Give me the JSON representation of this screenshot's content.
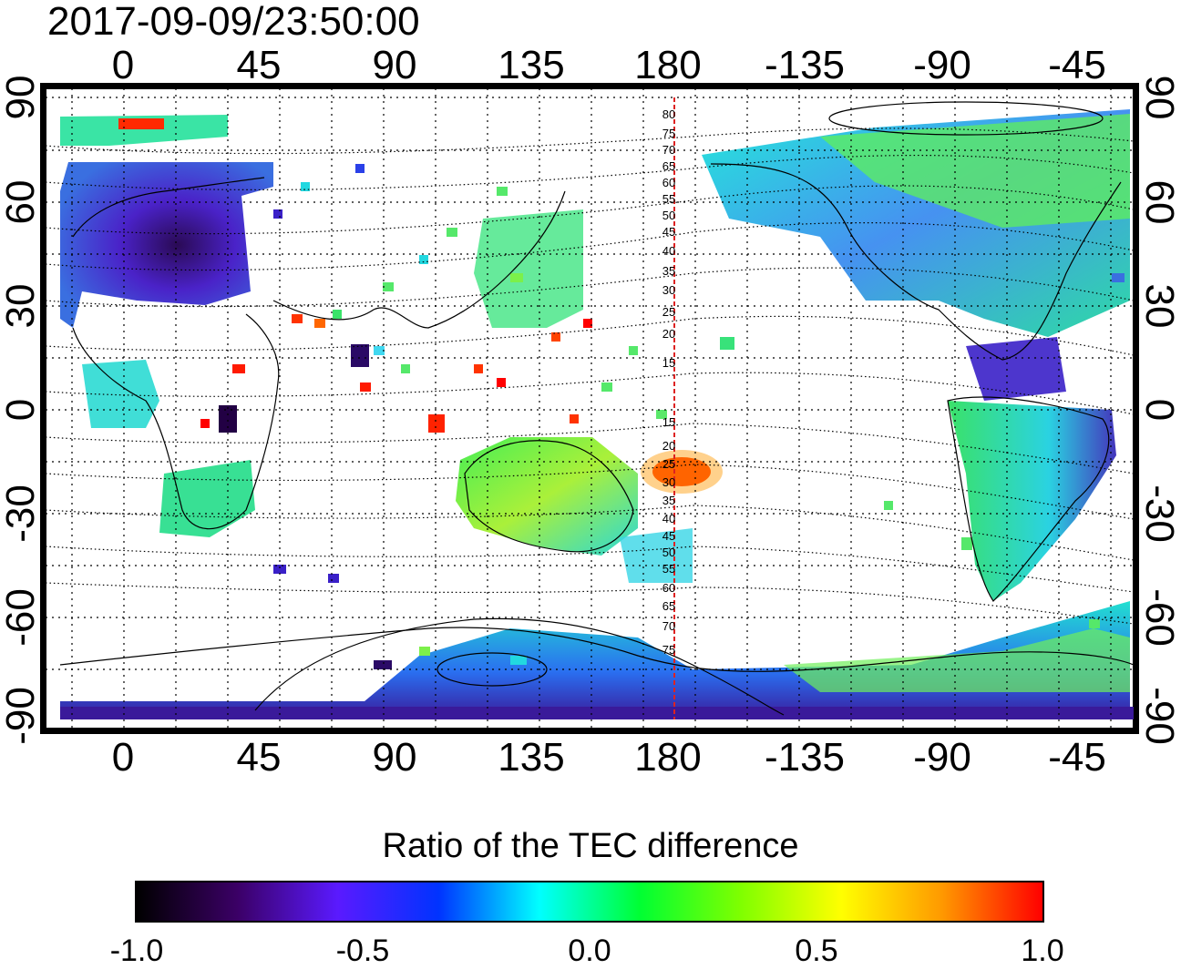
{
  "title": "2017-09-09/23:50:00",
  "map": {
    "top_lon_labels": [
      "0",
      "45",
      "90",
      "135",
      "180",
      "-135",
      "-90",
      "-45"
    ],
    "bottom_lon_labels": [
      "0",
      "45",
      "90",
      "135",
      "180",
      "-135",
      "-90",
      "-45"
    ],
    "left_lat_labels": [
      "90",
      "60",
      "30",
      "0",
      "-30",
      "-60",
      "-90"
    ],
    "right_lat_labels": [
      "90",
      "60",
      "30",
      "0",
      "-30",
      "-60",
      "-90"
    ],
    "meridian_label_north": [
      "80",
      "75",
      "70",
      "65",
      "60",
      "55",
      "50",
      "45",
      "40",
      "35",
      "30",
      "25",
      "20",
      "15"
    ],
    "meridian_label_south": [
      "15",
      "20",
      "25",
      "30",
      "35",
      "40",
      "45",
      "50",
      "55",
      "60",
      "65",
      "70",
      "75"
    ],
    "red_line_longitude": 180,
    "graticule": "dotted",
    "coastlines": "black"
  },
  "colorbar": {
    "title": "Ratio of the TEC difference",
    "ticks": [
      "-1.0",
      "-0.5",
      "0.0",
      "0.5",
      "1.0"
    ],
    "colors": [
      "#000000",
      "#3b0066",
      "#5a1aff",
      "#0033ff",
      "#00ffff",
      "#00ff33",
      "#7fff00",
      "#ffff00",
      "#ff9900",
      "#ff0000"
    ]
  },
  "legend_colors": {
    "red_line": "#dd2222"
  }
}
